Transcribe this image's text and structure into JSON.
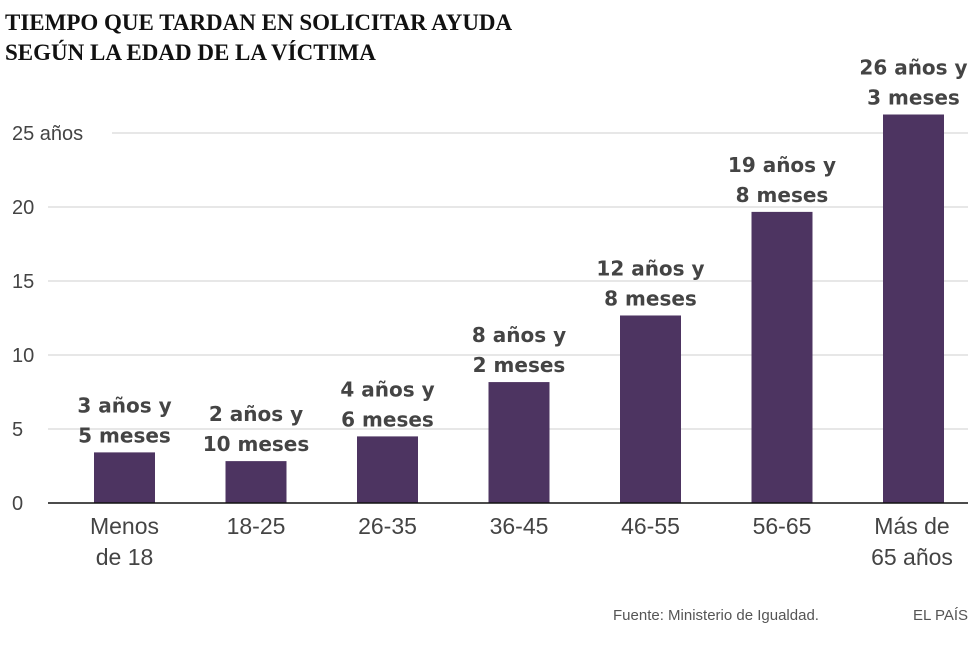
{
  "chart_data": {
    "type": "bar",
    "title": [
      "TIEMPO QUE TARDAN EN SOLICITAR AYUDA",
      "SEGÚN LA EDAD DE LA VÍCTIMA"
    ],
    "categories": [
      [
        "Menos",
        "de 18"
      ],
      [
        "18-25"
      ],
      [
        "26-35"
      ],
      [
        "36-45"
      ],
      [
        "46-55"
      ],
      [
        "56-65"
      ],
      [
        "Más de",
        "65 años"
      ]
    ],
    "values": [
      3.42,
      2.83,
      4.5,
      8.17,
      12.67,
      19.67,
      26.25
    ],
    "data_labels": [
      [
        "3 años y",
        "5 meses"
      ],
      [
        "2 años y",
        "10 meses"
      ],
      [
        "4 años y",
        "6 meses"
      ],
      [
        "8 años y",
        "2 meses"
      ],
      [
        "12 años y",
        "8 meses"
      ],
      [
        "19 años y",
        "8 meses"
      ],
      [
        "26 años y",
        "3 meses"
      ]
    ],
    "y_ticks": [
      0,
      5,
      10,
      15,
      20,
      25
    ],
    "y_tick_labels": [
      "0",
      "5",
      "10",
      "15",
      "20",
      "25 años"
    ],
    "ylim": [
      0,
      25
    ],
    "grid": true,
    "bar_color": "#4d3461"
  },
  "footer": {
    "source": "Fuente: Ministerio de Igualdad.",
    "brand": "EL PAÍS"
  }
}
